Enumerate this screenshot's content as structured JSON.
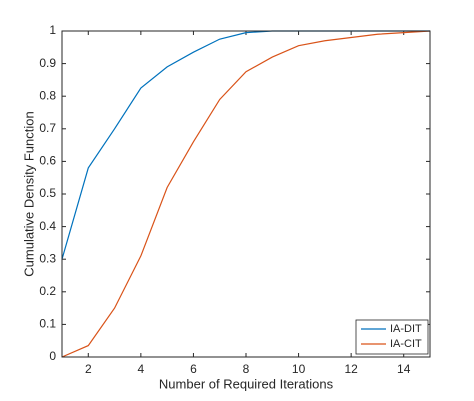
{
  "chart_data": {
    "type": "line",
    "x_label": "Number of Required Iterations",
    "y_label": "Cumulative Density Function",
    "x": [
      1,
      2,
      3,
      4,
      5,
      6,
      7,
      8,
      9,
      10,
      11,
      12,
      13,
      14,
      15
    ],
    "series": [
      {
        "name": "IA-DIT",
        "color": "#0072bd",
        "values": [
          0.3,
          0.58,
          0.7,
          0.825,
          0.89,
          0.935,
          0.975,
          0.995,
          1.0,
          1.0,
          1.0,
          1.0,
          1.0,
          1.0,
          1.0
        ]
      },
      {
        "name": "IA-CIT",
        "color": "#d95319",
        "values": [
          0,
          0.035,
          0.15,
          0.31,
          0.52,
          0.66,
          0.79,
          0.875,
          0.92,
          0.955,
          0.97,
          0.98,
          0.99,
          0.995,
          1.0
        ]
      }
    ],
    "xlim": [
      1,
      15
    ],
    "xticks": [
      2,
      4,
      6,
      8,
      10,
      12,
      14
    ],
    "ylim": [
      0,
      1
    ],
    "yticks": [
      0,
      0.1,
      0.2,
      0.3,
      0.4,
      0.5,
      0.6,
      0.7,
      0.8,
      0.9,
      1
    ],
    "legend": "lower-right"
  }
}
